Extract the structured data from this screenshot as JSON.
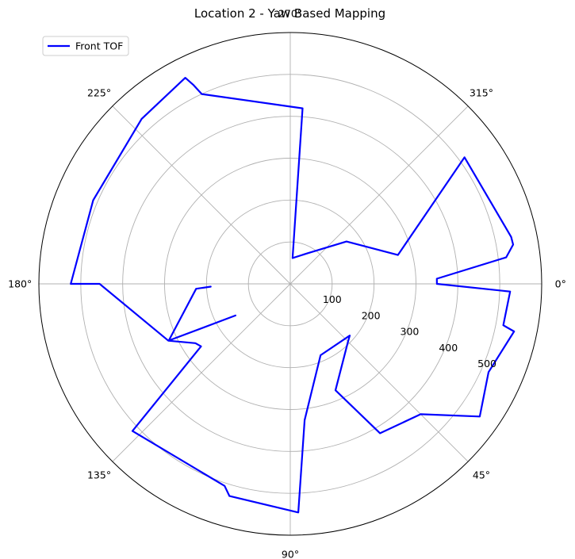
{
  "chart_data": {
    "type": "polar-line",
    "title": "Location 2 - Yaw Based Mapping",
    "rmax": 600,
    "r_ticks": [
      100,
      200,
      300,
      400,
      500
    ],
    "r_tick_labels": [
      "100",
      "200",
      "300",
      "400",
      "500"
    ],
    "theta_ticks_deg": [
      0,
      45,
      90,
      135,
      180,
      225,
      270,
      315
    ],
    "theta_tick_labels": [
      "0°",
      "45°",
      "90°",
      "135°",
      "180°",
      "225°",
      "270°",
      "315°"
    ],
    "theta_direction": "clockwise",
    "theta_zero": "east",
    "grid": true,
    "legend": {
      "position": "top-left",
      "entries": [
        "Front TOF"
      ]
    },
    "series": [
      {
        "name": "Front TOF",
        "color": "#0000ff",
        "points": [
          [
            0,
            350
          ],
          [
            2,
            525
          ],
          [
            11,
            518
          ],
          [
            12,
            546
          ],
          [
            24,
            518
          ],
          [
            35,
            552
          ],
          [
            45,
            440
          ],
          [
            59,
            416
          ],
          [
            67,
            276
          ],
          [
            45,
            195
          ],
          [
            41,
            188
          ],
          [
            67,
            185
          ],
          [
            84,
            327
          ],
          [
            88,
            546
          ],
          [
            106,
            527
          ],
          [
            108,
            507
          ],
          [
            137,
            515
          ],
          [
            145,
            260
          ],
          [
            148,
            267
          ],
          [
            155,
            321
          ],
          [
            180,
            455
          ],
          [
            180,
            524
          ],
          [
            203,
            511
          ],
          [
            228,
            530
          ],
          [
            243,
            552
          ],
          [
            244,
            529
          ],
          [
            245,
            500
          ],
          [
            274,
            420
          ],
          [
            275,
            62
          ],
          [
            299,
            83
          ],
          [
            323,
            168
          ],
          [
            345,
            266
          ],
          [
            324,
            514
          ],
          [
            348,
            539
          ],
          [
            350,
            540
          ],
          [
            353,
            519
          ],
          [
            358,
            350
          ],
          [
            360,
            350
          ]
        ]
      }
    ],
    "extra_segments": [
      [
        [
          150,
          151
        ],
        [
          155,
          320
        ],
        [
          177,
          225
        ],
        [
          178,
          190
        ]
      ]
    ]
  }
}
